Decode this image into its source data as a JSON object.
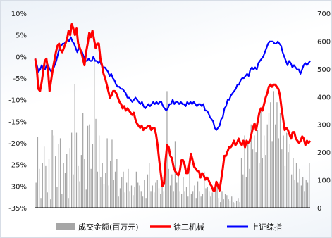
{
  "chart_data": {
    "type": "bar+line",
    "left_axis": {
      "ticks": [
        "10%",
        "5%",
        "0%",
        "-5%",
        "-10%",
        "-15%",
        "-20%",
        "-25%",
        "-30%",
        "-35%"
      ],
      "range": [
        -35,
        10
      ]
    },
    "right_axis": {
      "ticks": [
        "700",
        "600",
        "500",
        "400",
        "300",
        "200",
        "100",
        "0"
      ],
      "range": [
        0,
        700
      ]
    },
    "grid": false,
    "legend_position": "bottom",
    "series": [
      {
        "name": "成交金额(百万元)",
        "type": "bar",
        "axis": "right",
        "color": "#a6a6a6",
        "values": [
          90,
          255,
          140,
          35,
          160,
          220,
          150,
          55,
          175,
          30,
          280,
          260,
          185,
          75,
          230,
          250,
          50,
          160,
          125,
          195,
          35,
          215,
          270,
          120,
          445,
          270,
          150,
          95,
          190,
          340,
          175,
          65,
          295,
          300,
          140,
          230,
          530,
          320,
          130,
          260,
          110,
          160,
          85,
          125,
          250,
          80,
          170,
          245,
          100,
          130,
          175,
          40,
          70,
          110,
          130,
          55,
          90,
          140,
          60,
          80,
          45,
          75,
          130,
          90,
          80,
          60,
          40,
          100,
          35,
          120,
          160,
          60,
          80,
          55,
          90,
          100,
          70,
          50,
          110,
          60,
          130,
          420,
          140,
          80,
          120,
          60,
          240,
          90,
          120,
          60,
          50,
          110,
          60,
          75,
          40,
          150,
          50,
          60,
          80,
          35,
          95,
          60,
          40,
          50,
          130,
          70,
          75,
          60,
          40,
          55,
          70,
          60,
          80,
          35,
          20,
          60,
          30,
          50,
          45,
          30,
          25,
          40,
          20,
          15,
          25,
          35,
          20,
          180,
          120,
          260,
          110,
          240,
          140,
          300,
          210,
          260,
          200,
          280,
          160,
          360,
          180,
          260,
          190,
          300,
          340,
          380,
          240,
          420,
          300,
          380,
          250,
          340,
          210,
          260,
          150,
          270,
          200,
          230,
          120,
          180,
          100,
          160,
          90,
          140,
          80,
          110,
          60,
          100,
          90,
          160
        ]
      },
      {
        "name": "徐工机械",
        "type": "line",
        "axis": "left",
        "color": "#ff0000",
        "values": [
          -0.5,
          -3,
          -7.5,
          -8,
          -6,
          -3.5,
          -1,
          -0.5,
          -3,
          -8,
          -5.5,
          -3,
          -1,
          1,
          2.5,
          3,
          1.5,
          1,
          2,
          3,
          4,
          6,
          5,
          7.5,
          6.5,
          5,
          6.5,
          3,
          2,
          1,
          -0.5,
          -2,
          1,
          3,
          5.5,
          4.5,
          6,
          4,
          2,
          3,
          3,
          -0.5,
          -2,
          -4,
          -5,
          -6.5,
          -8,
          -9.5,
          -9,
          -8,
          -8,
          -8.5,
          -9.5,
          -10.5,
          -11,
          -12,
          -11.5,
          -12.5,
          -12,
          -12.5,
          -13,
          -13.5,
          -13,
          -14.5,
          -15.5,
          -16,
          -16.5,
          -16,
          -17,
          -16.5,
          -16.5,
          -16,
          -16,
          -17,
          -16.5,
          -16.5,
          -18,
          -20.5,
          -24,
          -27,
          -30,
          -29.5,
          -24,
          -20.5,
          -21,
          -23,
          -23.5,
          -25.5,
          -26.5,
          -27,
          -27.5,
          -26.5,
          -24,
          -24,
          -25,
          -27,
          -27,
          -25,
          -22.5,
          -24,
          -25.5,
          -26,
          -26.5,
          -26.5,
          -28,
          -27,
          -27.5,
          -28.5,
          -28,
          -28.5,
          -29.5,
          -30,
          -31,
          -31,
          -29,
          -30,
          -31,
          -28.5,
          -26,
          -23,
          -23,
          -22,
          -21,
          -21,
          -20.5,
          -19.5,
          -20.5,
          -20,
          -19,
          -20,
          -20.5,
          -19.5,
          -21,
          -19.5,
          -20,
          -19.5,
          -18,
          -16.5,
          -15.5,
          -17,
          -15,
          -13,
          -12,
          -12.5,
          -11,
          -9.5,
          -8.5,
          -7,
          -6.5,
          -7,
          -6.5,
          -6.5,
          -7,
          -7.5,
          -9,
          -12,
          -14.5,
          -17,
          -16.5,
          -17,
          -18,
          -19,
          -17.5,
          -17.5,
          -19,
          -19.5,
          -20,
          -19.5,
          -18.5,
          -19,
          -20.5,
          -19.5,
          -20,
          -19.5
        ]
      },
      {
        "name": "上证综指",
        "type": "line",
        "axis": "left",
        "color": "#0000ff",
        "values": [
          -0.5,
          -2,
          -3.5,
          -3,
          -2,
          -3,
          -3,
          -2,
          -2,
          -3,
          -3.5,
          -3,
          -2,
          -1,
          0.5,
          2,
          2.5,
          3,
          3,
          3.5,
          4,
          3.5,
          4.5,
          3.5,
          3,
          2,
          1,
          2,
          1.5,
          1,
          0,
          -1,
          -1,
          -0.5,
          -1,
          -1,
          0,
          -1,
          -1,
          -1.5,
          -1,
          -2,
          -2.5,
          -2.5,
          -3,
          -3.5,
          -4.5,
          -4,
          -5,
          -5.5,
          -6.5,
          -7,
          -7,
          -7.5,
          -7.5,
          -8,
          -8.5,
          -9.5,
          -9.5,
          -10,
          -10.5,
          -10,
          -9.5,
          -10,
          -10.5,
          -11,
          -10.5,
          -11.5,
          -12,
          -11.5,
          -11,
          -11.5,
          -11,
          -10.5,
          -11,
          -10.5,
          -11,
          -10.5,
          -10.5,
          -11.5,
          -12,
          -12.5,
          -12,
          -11,
          -11,
          -10,
          -11,
          -10.5,
          -10.5,
          -11,
          -10.5,
          -11,
          -11,
          -11.5,
          -10.5,
          -11,
          -10.5,
          -11,
          -10.5,
          -11,
          -11.5,
          -11,
          -11,
          -11.5,
          -11,
          -12.5,
          -12.5,
          -13,
          -14,
          -14.5,
          -15,
          -16.5,
          -17,
          -16.5,
          -16,
          -14.5,
          -14,
          -12,
          -11.5,
          -10,
          -10,
          -9,
          -8.5,
          -8,
          -7.5,
          -6.5,
          -6.5,
          -5.5,
          -5,
          -5,
          -4.5,
          -4,
          -4.5,
          -3,
          -2.5,
          -3,
          -2.5,
          -3,
          -1.5,
          -1,
          -0.5,
          0,
          1,
          2,
          3,
          3.5,
          3.5,
          3.5,
          3,
          3,
          3.5,
          3,
          2.5,
          1,
          0,
          -1,
          -2,
          -1,
          -1.5,
          -2.5,
          -2,
          -2.5,
          -3,
          -3,
          -4,
          -3,
          -2,
          -1.5,
          -2,
          -1.5,
          -1
        ]
      }
    ]
  }
}
